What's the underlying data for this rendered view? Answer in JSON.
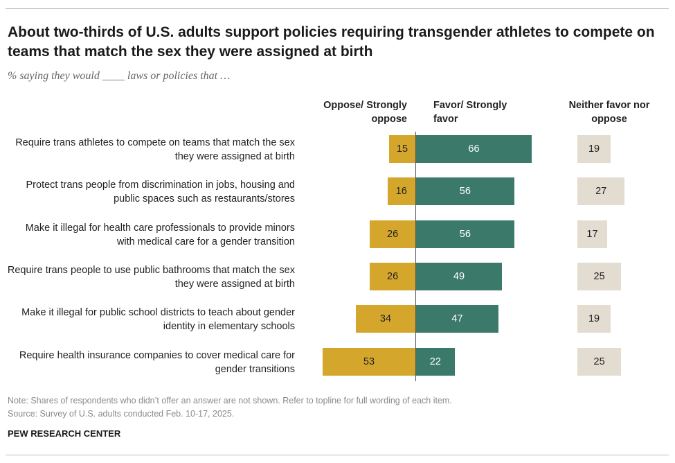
{
  "title": "About two-thirds of U.S. adults support policies requiring transgender athletes to compete on teams that match the sex they were assigned at birth",
  "subtitle": "% saying they would ____ laws or policies that …",
  "columns": {
    "oppose": "Oppose/ Strongly oppose",
    "favor": "Favor/ Strongly favor",
    "neither": "Neither favor nor oppose"
  },
  "colors": {
    "oppose": "#d4a72c",
    "favor": "#3b7a6a",
    "neither": "#e2ddd0"
  },
  "chart_data": {
    "type": "bar",
    "categories": [
      "Require trans athletes to compete on teams that match the sex they were assigned at birth",
      "Protect trans people from discrimination in jobs, housing and public spaces such as restaurants/stores",
      "Make it illegal for health care professionals to provide minors with medical care for a gender transition",
      "Require trans people to use public bathrooms that match the sex they were assigned at birth",
      "Make it illegal for public school districts to teach about gender identity in elementary schools",
      "Require health insurance companies to cover medical care for gender transitions"
    ],
    "series": [
      {
        "name": "Oppose/ Strongly oppose",
        "values": [
          15,
          16,
          26,
          26,
          34,
          53
        ]
      },
      {
        "name": "Favor/ Strongly favor",
        "values": [
          66,
          56,
          56,
          49,
          47,
          22
        ]
      },
      {
        "name": "Neither favor nor oppose",
        "values": [
          19,
          27,
          17,
          25,
          19,
          25
        ]
      }
    ]
  },
  "note": "Note: Shares of respondents who didn’t offer an answer are not shown. Refer to topline for full wording of each item.",
  "source": "Source: Survey of U.S. adults conducted Feb. 10-17, 2025.",
  "brand": "PEW RESEARCH CENTER"
}
